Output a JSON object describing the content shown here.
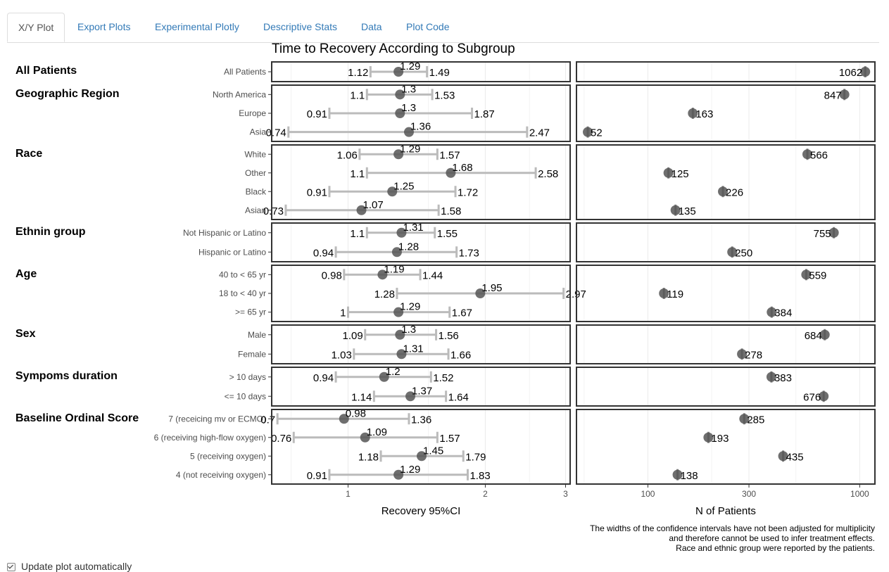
{
  "tabs": [
    {
      "label": "X/Y Plot",
      "active": true
    },
    {
      "label": "Export Plots"
    },
    {
      "label": "Experimental Plotly"
    },
    {
      "label": "Descriptive Stats"
    },
    {
      "label": "Data"
    },
    {
      "label": "Plot Code"
    }
  ],
  "footer": {
    "checkbox_label": "Update plot automatically",
    "checked": true
  },
  "colors": {
    "point": "#555555",
    "ci": "#bbbbbb",
    "border": "#333333",
    "grid": "#ebebeb"
  },
  "chart_data": {
    "type": "scatter",
    "title": "Time to Recovery According to Subgroup",
    "left_panel": {
      "xlabel": "Recovery 95%CI",
      "scale": "log",
      "xlim": [
        0.68,
        3.07
      ],
      "ticks": [
        1,
        2,
        3
      ]
    },
    "right_panel": {
      "xlabel": "N of Patients",
      "scale": "log",
      "xlim": [
        46,
        1180
      ],
      "ticks": [
        100,
        300,
        1000
      ]
    },
    "groups": [
      {
        "name": "All Patients",
        "rows": [
          {
            "label": "All Patients",
            "estimate": 1.29,
            "lower": 1.12,
            "upper": 1.49,
            "n": 1062
          }
        ]
      },
      {
        "name": "Geographic Region",
        "rows": [
          {
            "label": "North America",
            "estimate": 1.3,
            "lower": 1.1,
            "upper": 1.53,
            "n": 847
          },
          {
            "label": "Europe",
            "estimate": 1.3,
            "lower": 0.91,
            "upper": 1.87,
            "n": 163
          },
          {
            "label": "Asia",
            "estimate": 1.36,
            "lower": 0.74,
            "upper": 2.47,
            "n": 52
          }
        ]
      },
      {
        "name": "Race",
        "rows": [
          {
            "label": "White",
            "estimate": 1.29,
            "lower": 1.06,
            "upper": 1.57,
            "n": 566
          },
          {
            "label": "Other",
            "estimate": 1.68,
            "lower": 1.1,
            "upper": 2.58,
            "n": 125
          },
          {
            "label": "Black",
            "estimate": 1.25,
            "lower": 0.91,
            "upper": 1.72,
            "n": 226
          },
          {
            "label": "Asian",
            "estimate": 1.07,
            "lower": 0.73,
            "upper": 1.58,
            "n": 135
          }
        ]
      },
      {
        "name": "Ethnin group",
        "rows": [
          {
            "label": "Not Hispanic or Latino",
            "estimate": 1.31,
            "lower": 1.1,
            "upper": 1.55,
            "n": 755
          },
          {
            "label": "Hispanic or Latino",
            "estimate": 1.28,
            "lower": 0.94,
            "upper": 1.73,
            "n": 250
          }
        ]
      },
      {
        "name": "Age",
        "rows": [
          {
            "label": "40 to < 65 yr",
            "estimate": 1.19,
            "lower": 0.98,
            "upper": 1.44,
            "n": 559
          },
          {
            "label": "18 to < 40 yr",
            "estimate": 1.95,
            "lower": 1.28,
            "upper": 2.97,
            "n": 119
          },
          {
            "label": ">= 65 yr",
            "estimate": 1.29,
            "lower": 1,
            "upper": 1.67,
            "n": 384
          }
        ]
      },
      {
        "name": "Sex",
        "rows": [
          {
            "label": "Male",
            "estimate": 1.3,
            "lower": 1.09,
            "upper": 1.56,
            "n": 684
          },
          {
            "label": "Female",
            "estimate": 1.31,
            "lower": 1.03,
            "upper": 1.66,
            "n": 278
          }
        ]
      },
      {
        "name": "Sympoms duration",
        "rows": [
          {
            "label": "> 10 days",
            "estimate": 1.2,
            "lower": 0.94,
            "upper": 1.52,
            "n": 383
          },
          {
            "label": "<= 10 days",
            "estimate": 1.37,
            "lower": 1.14,
            "upper": 1.64,
            "n": 676
          }
        ]
      },
      {
        "name": "Baseline Ordinal Score",
        "rows": [
          {
            "label": "7 (receicing mv or ECMO)",
            "estimate": 0.98,
            "lower": 0.7,
            "upper": 1.36,
            "n": 285
          },
          {
            "label": "6 (receiving high-flow oxygen)",
            "estimate": 1.09,
            "lower": 0.76,
            "upper": 1.57,
            "n": 193
          },
          {
            "label": "5 (receiving oxygen)",
            "estimate": 1.45,
            "lower": 1.18,
            "upper": 1.79,
            "n": 435
          },
          {
            "label": "4 (not receiving oxygen)",
            "estimate": 1.29,
            "lower": 0.91,
            "upper": 1.83,
            "n": 138
          }
        ]
      }
    ],
    "caption": [
      "The widths of the confidence intervals have not been adjusted for multiplicity",
      "and therefore cannot be used to infer treatment effects.",
      "Race and ethnic group were reported by the patients."
    ],
    "grid": true
  }
}
